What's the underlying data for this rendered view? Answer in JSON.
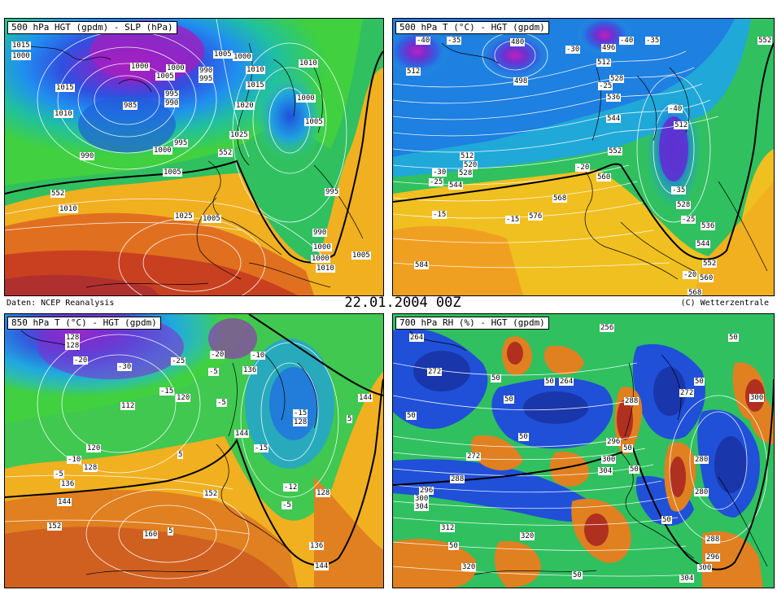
{
  "panels": [
    {
      "title": "500 hPa HGT (gpdm) - SLP (hPa)",
      "labels": [
        "1015",
        "1000",
        "1000",
        "995",
        "990",
        "985",
        "1000",
        "1005",
        "990",
        "995",
        "1005",
        "1000",
        "1010",
        "1015",
        "1015",
        "1020",
        "1010",
        "1000",
        "1005",
        "1010",
        "990",
        "1000",
        "995",
        "1005",
        "552",
        "1025",
        "1025",
        "1005",
        "1010",
        "552",
        "995",
        "990",
        "1000",
        "1010",
        "1005",
        "1000"
      ]
    },
    {
      "title": "500 hPa T (°C) - HGT (gpdm)",
      "labels": [
        "-40",
        "-35",
        "480",
        "496",
        "-30",
        "512",
        "-40",
        "-35",
        "552",
        "512",
        "498",
        "528",
        "536",
        "-25",
        "544",
        "552",
        "-40",
        "512",
        "512",
        "520",
        "528",
        "-30",
        "-25",
        "544",
        "-20",
        "-35",
        "560",
        "528",
        "568",
        "-15",
        "-15",
        "576",
        "-25",
        "536",
        "544",
        "584",
        "552",
        "-20",
        "560",
        "568"
      ]
    },
    {
      "title": "850 hPa T (°C) - HGT (gpdm)",
      "labels": [
        "128",
        "128",
        "-20",
        "-30",
        "-25",
        "-20",
        "-10",
        "-5",
        "136",
        "-15",
        "112",
        "120",
        "144",
        "-15",
        "128",
        "-10",
        "120",
        "5",
        "144",
        "-15",
        "-5",
        "128",
        "136",
        "152",
        "144",
        "-12",
        "128",
        "-5",
        "152",
        "160",
        "136",
        "144",
        "5",
        "-5",
        "5"
      ]
    },
    {
      "title": "700 hPa RH (%) - HGT (gpdm)",
      "labels": [
        "264",
        "256",
        "50",
        "272",
        "50",
        "264",
        "50",
        "50",
        "288",
        "50",
        "272",
        "300",
        "50",
        "50",
        "296",
        "50",
        "272",
        "280",
        "300",
        "304",
        "50",
        "296",
        "288",
        "300",
        "280",
        "304",
        "312",
        "50",
        "320",
        "288",
        "296",
        "50",
        "320",
        "50",
        "300",
        "304"
      ]
    }
  ],
  "footer": {
    "source": "Daten: NCEP Reanalysis",
    "datetime": "22.01.2004 00Z",
    "credit": "(C) Wetterzentrale"
  }
}
